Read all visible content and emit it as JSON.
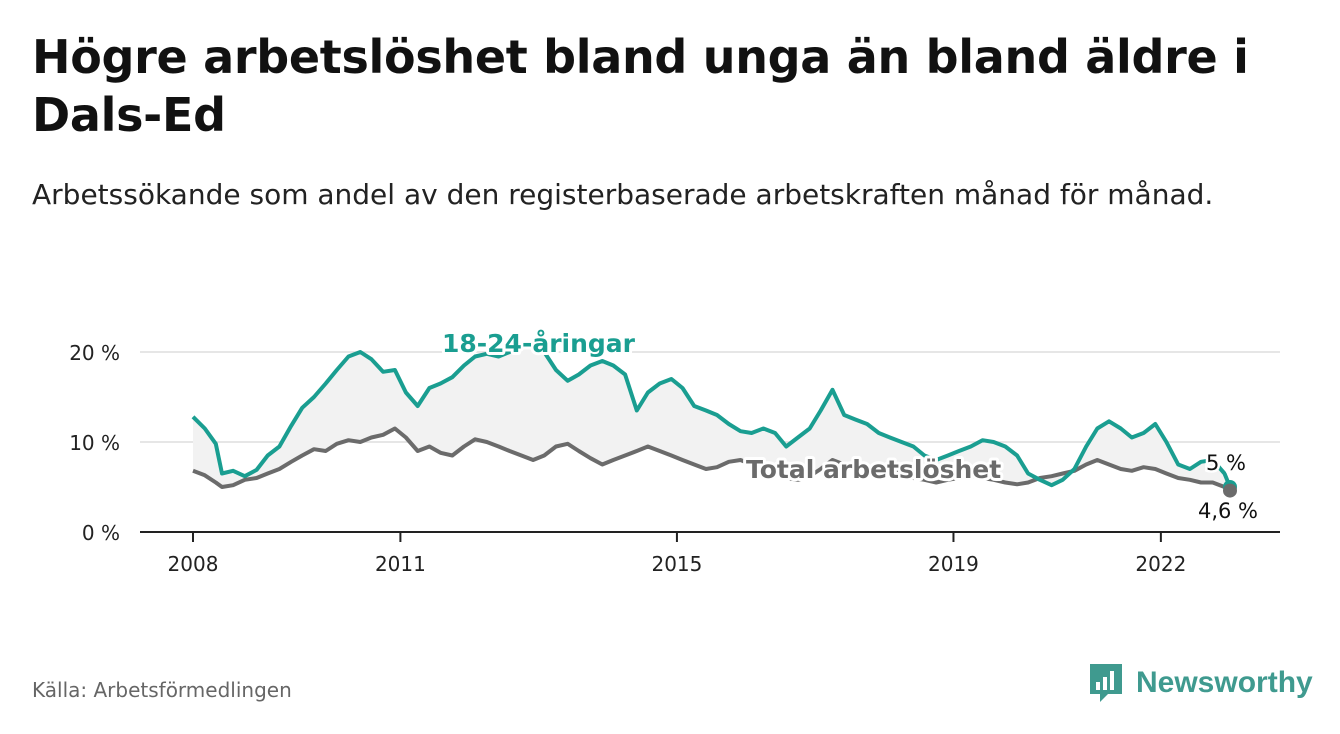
{
  "header": {
    "title": "Högre arbetslöshet bland unga än bland äldre i Dals-Ed",
    "subtitle": "Arbetssökande som andel av den registerbaserade arbetskraften månad för månad."
  },
  "footer": {
    "source": "Källa: Arbetsförmedlingen",
    "brand": "Newsworthy"
  },
  "colors": {
    "young": "#1a9e91",
    "total": "#6b6b6b",
    "band": "#f2f2f2",
    "grid": "#dddddd",
    "brand": "#3f9a8f"
  },
  "chart_data": {
    "type": "line",
    "title": "Högre arbetslöshet bland unga än bland äldre i Dals-Ed",
    "ylim": [
      0,
      20
    ],
    "xlim": [
      2008,
      2023.0
    ],
    "y_ticks": [
      0,
      10,
      20
    ],
    "y_tick_labels": [
      "0 %",
      "10 %",
      "20 %"
    ],
    "x_ticks": [
      2008,
      2011,
      2015,
      2019,
      2022
    ],
    "x_tick_labels": [
      "2008",
      "2011",
      "2015",
      "2019",
      "2022"
    ],
    "grid": true,
    "series": [
      {
        "name": "18-24-åringar",
        "label": "18-24-åringar",
        "end_label": "5 %",
        "points": [
          [
            2008.0,
            12.8
          ],
          [
            2008.17,
            11.5
          ],
          [
            2008.33,
            9.8
          ],
          [
            2008.42,
            6.5
          ],
          [
            2008.58,
            6.8
          ],
          [
            2008.75,
            6.2
          ],
          [
            2008.92,
            6.9
          ],
          [
            2009.08,
            8.5
          ],
          [
            2009.25,
            9.5
          ],
          [
            2009.42,
            11.8
          ],
          [
            2009.58,
            13.8
          ],
          [
            2009.75,
            15.0
          ],
          [
            2009.92,
            16.5
          ],
          [
            2010.08,
            18.0
          ],
          [
            2010.25,
            19.5
          ],
          [
            2010.42,
            20.0
          ],
          [
            2010.58,
            19.2
          ],
          [
            2010.75,
            17.8
          ],
          [
            2010.92,
            18.0
          ],
          [
            2011.08,
            15.5
          ],
          [
            2011.25,
            14.0
          ],
          [
            2011.42,
            16.0
          ],
          [
            2011.58,
            16.5
          ],
          [
            2011.75,
            17.2
          ],
          [
            2011.92,
            18.5
          ],
          [
            2012.08,
            19.5
          ],
          [
            2012.25,
            19.8
          ],
          [
            2012.42,
            19.5
          ],
          [
            2012.58,
            20.0
          ],
          [
            2012.75,
            20.5
          ],
          [
            2012.92,
            21.0
          ],
          [
            2013.08,
            20.0
          ],
          [
            2013.25,
            18.0
          ],
          [
            2013.42,
            16.8
          ],
          [
            2013.58,
            17.5
          ],
          [
            2013.75,
            18.5
          ],
          [
            2013.92,
            19.0
          ],
          [
            2014.08,
            18.5
          ],
          [
            2014.25,
            17.5
          ],
          [
            2014.42,
            13.5
          ],
          [
            2014.58,
            15.5
          ],
          [
            2014.75,
            16.5
          ],
          [
            2014.92,
            17.0
          ],
          [
            2015.08,
            16.0
          ],
          [
            2015.25,
            14.0
          ],
          [
            2015.42,
            13.5
          ],
          [
            2015.58,
            13.0
          ],
          [
            2015.75,
            12.0
          ],
          [
            2015.92,
            11.2
          ],
          [
            2016.08,
            11.0
          ],
          [
            2016.25,
            11.5
          ],
          [
            2016.42,
            11.0
          ],
          [
            2016.58,
            9.5
          ],
          [
            2016.75,
            10.5
          ],
          [
            2016.92,
            11.5
          ],
          [
            2017.08,
            13.5
          ],
          [
            2017.25,
            15.8
          ],
          [
            2017.42,
            13.0
          ],
          [
            2017.58,
            12.5
          ],
          [
            2017.75,
            12.0
          ],
          [
            2017.92,
            11.0
          ],
          [
            2018.08,
            10.5
          ],
          [
            2018.25,
            10.0
          ],
          [
            2018.42,
            9.5
          ],
          [
            2018.58,
            8.5
          ],
          [
            2018.75,
            8.0
          ],
          [
            2018.92,
            8.5
          ],
          [
            2019.08,
            9.0
          ],
          [
            2019.25,
            9.5
          ],
          [
            2019.42,
            10.2
          ],
          [
            2019.58,
            10.0
          ],
          [
            2019.75,
            9.5
          ],
          [
            2019.92,
            8.5
          ],
          [
            2020.08,
            6.5
          ],
          [
            2020.25,
            5.8
          ],
          [
            2020.42,
            5.2
          ],
          [
            2020.58,
            5.8
          ],
          [
            2020.75,
            7.0
          ],
          [
            2020.92,
            9.5
          ],
          [
            2021.08,
            11.5
          ],
          [
            2021.25,
            12.3
          ],
          [
            2021.42,
            11.5
          ],
          [
            2021.58,
            10.5
          ],
          [
            2021.75,
            11.0
          ],
          [
            2021.92,
            12.0
          ],
          [
            2022.08,
            10.0
          ],
          [
            2022.25,
            7.5
          ],
          [
            2022.42,
            7.0
          ],
          [
            2022.58,
            7.8
          ],
          [
            2022.75,
            8.0
          ],
          [
            2022.92,
            6.5
          ],
          [
            2023.0,
            5.0
          ]
        ]
      },
      {
        "name": "Total arbetslöshet",
        "label": "Total arbetslöshet",
        "end_label": "4,6 %",
        "points": [
          [
            2008.0,
            6.8
          ],
          [
            2008.17,
            6.3
          ],
          [
            2008.33,
            5.5
          ],
          [
            2008.42,
            5.0
          ],
          [
            2008.58,
            5.2
          ],
          [
            2008.75,
            5.8
          ],
          [
            2008.92,
            6.0
          ],
          [
            2009.08,
            6.5
          ],
          [
            2009.25,
            7.0
          ],
          [
            2009.42,
            7.8
          ],
          [
            2009.58,
            8.5
          ],
          [
            2009.75,
            9.2
          ],
          [
            2009.92,
            9.0
          ],
          [
            2010.08,
            9.8
          ],
          [
            2010.25,
            10.2
          ],
          [
            2010.42,
            10.0
          ],
          [
            2010.58,
            10.5
          ],
          [
            2010.75,
            10.8
          ],
          [
            2010.92,
            11.5
          ],
          [
            2011.08,
            10.5
          ],
          [
            2011.25,
            9.0
          ],
          [
            2011.42,
            9.5
          ],
          [
            2011.58,
            8.8
          ],
          [
            2011.75,
            8.5
          ],
          [
            2011.92,
            9.5
          ],
          [
            2012.08,
            10.3
          ],
          [
            2012.25,
            10.0
          ],
          [
            2012.42,
            9.5
          ],
          [
            2012.58,
            9.0
          ],
          [
            2012.75,
            8.5
          ],
          [
            2012.92,
            8.0
          ],
          [
            2013.08,
            8.5
          ],
          [
            2013.25,
            9.5
          ],
          [
            2013.42,
            9.8
          ],
          [
            2013.58,
            9.0
          ],
          [
            2013.75,
            8.2
          ],
          [
            2013.92,
            7.5
          ],
          [
            2014.08,
            8.0
          ],
          [
            2014.25,
            8.5
          ],
          [
            2014.42,
            9.0
          ],
          [
            2014.58,
            9.5
          ],
          [
            2014.75,
            9.0
          ],
          [
            2014.92,
            8.5
          ],
          [
            2015.08,
            8.0
          ],
          [
            2015.25,
            7.5
          ],
          [
            2015.42,
            7.0
          ],
          [
            2015.58,
            7.2
          ],
          [
            2015.75,
            7.8
          ],
          [
            2015.92,
            8.0
          ],
          [
            2016.08,
            7.5
          ],
          [
            2016.25,
            7.0
          ],
          [
            2016.42,
            6.5
          ],
          [
            2016.58,
            6.0
          ],
          [
            2016.75,
            5.8
          ],
          [
            2016.92,
            6.2
          ],
          [
            2017.08,
            7.0
          ],
          [
            2017.25,
            8.0
          ],
          [
            2017.42,
            7.5
          ],
          [
            2017.58,
            7.0
          ],
          [
            2017.75,
            6.5
          ],
          [
            2017.92,
            6.5
          ],
          [
            2018.08,
            6.8
          ],
          [
            2018.25,
            6.5
          ],
          [
            2018.42,
            6.0
          ],
          [
            2018.58,
            5.8
          ],
          [
            2018.75,
            5.5
          ],
          [
            2018.92,
            5.8
          ],
          [
            2019.08,
            6.0
          ],
          [
            2019.25,
            6.2
          ],
          [
            2019.42,
            6.0
          ],
          [
            2019.58,
            5.8
          ],
          [
            2019.75,
            5.5
          ],
          [
            2019.92,
            5.3
          ],
          [
            2020.08,
            5.5
          ],
          [
            2020.25,
            6.0
          ],
          [
            2020.42,
            6.2
          ],
          [
            2020.58,
            6.5
          ],
          [
            2020.75,
            6.8
          ],
          [
            2020.92,
            7.5
          ],
          [
            2021.08,
            8.0
          ],
          [
            2021.25,
            7.5
          ],
          [
            2021.42,
            7.0
          ],
          [
            2021.58,
            6.8
          ],
          [
            2021.75,
            7.2
          ],
          [
            2021.92,
            7.0
          ],
          [
            2022.08,
            6.5
          ],
          [
            2022.25,
            6.0
          ],
          [
            2022.42,
            5.8
          ],
          [
            2022.58,
            5.5
          ],
          [
            2022.75,
            5.5
          ],
          [
            2022.92,
            5.0
          ],
          [
            2023.0,
            4.6
          ]
        ]
      }
    ]
  }
}
